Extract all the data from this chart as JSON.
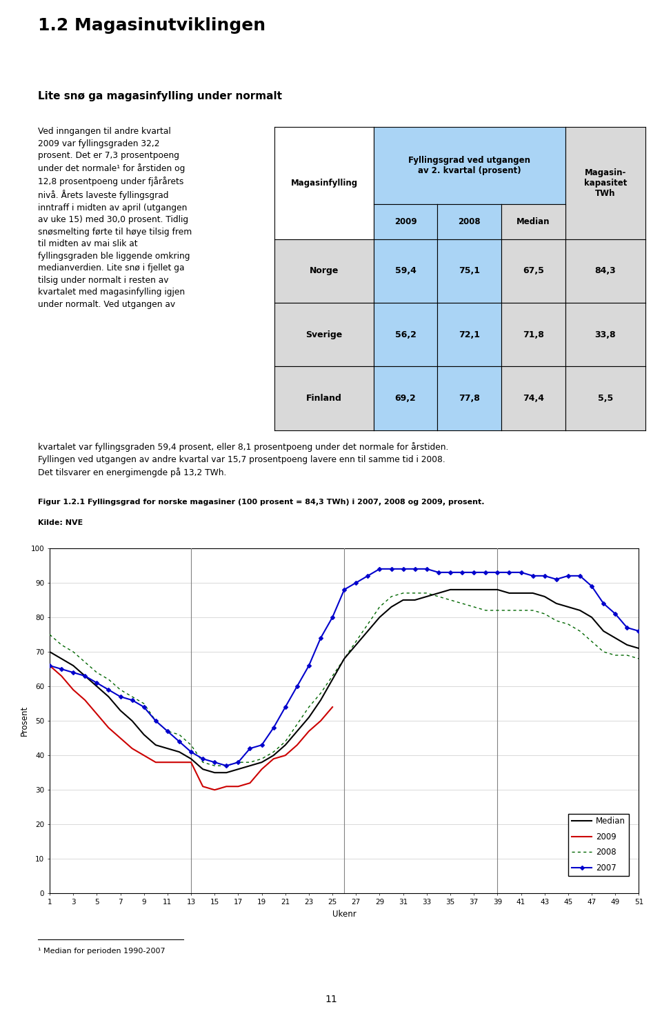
{
  "title": "1.2 Magasinutviklingen",
  "subtitle": "Lite snø ga magasinfylling under normalt",
  "body_text_left": "Ved inngangen til andre kvartal\n2009 var fyllingsgraden 32,2\nprosent. Det er 7,3 prosentpoeng\nunder det normale¹ for årstiden og\n12,8 prosentpoeng under fjårårets\nnivå. Årets laveste fyllingsgrad\ninntraff i midten av april (utgangen\nav uke 15) med 30,0 prosent. Tidlig\nsnøsmelting førte til høye tilsig frem\ntil midten av mai slik at\nfyllingsgraden ble liggende omkring\nmedianverdien. Lite snø i fjellet ga\ntilsig under normalt i resten av\nkvartalet med magasinfylling igjen\nunder normalt. Ved utgangen av",
  "body_text_cont": "kvartalet var fyllingsgraden 59,4 prosent, eller 8,1 prosentpoeng under det normale for årstiden.\nFyllingen ved utgangen av andre kvartal var 15,7 prosentpoeng lavere enn til samme tid i 2008.\nDet tilsvarer en energimengde på 13,2 TWh.",
  "table_header_col1": "Magasinfylling",
  "table_header_col2": "Fyllingsgrad ved utgangen\nav 2. kvartal (prosent)",
  "table_header_col3": "Magasin-\nkapasitet\nTWh",
  "table_subheader": [
    "2009",
    "2008",
    "Median"
  ],
  "table_rows": [
    [
      "Norge",
      "59,4",
      "75,1",
      "67,5",
      "84,3"
    ],
    [
      "Sverige",
      "56,2",
      "72,1",
      "71,8",
      "33,8"
    ],
    [
      "Finland",
      "69,2",
      "77,8",
      "74,4",
      "5,5"
    ]
  ],
  "fig_caption": "Figur 1.2.1 Fyllingsgrad for norske magasiner (100 prosent = 84,3 TWh) i 2007, 2008 og 2009, prosent.",
  "fig_source": "Kilde: NVE",
  "page_number": "11",
  "footnote": "¹ Median for perioden 1990-2007",
  "chart_xlabel": "Ukenr",
  "chart_ylabel": "Prosent",
  "chart_ylim": [
    0,
    100
  ],
  "chart_yticks": [
    0,
    10,
    20,
    30,
    40,
    50,
    60,
    70,
    80,
    90,
    100
  ],
  "chart_xticks": [
    1,
    3,
    5,
    7,
    9,
    11,
    13,
    15,
    17,
    19,
    21,
    23,
    25,
    27,
    29,
    31,
    33,
    35,
    37,
    39,
    41,
    43,
    45,
    47,
    49,
    51
  ],
  "chart_vlines": [
    13,
    26,
    39
  ],
  "median_data": [
    70,
    68,
    66,
    63,
    60,
    57,
    53,
    50,
    46,
    43,
    42,
    41,
    39,
    36,
    35,
    35,
    36,
    37,
    38,
    40,
    43,
    47,
    51,
    56,
    62,
    68,
    72,
    76,
    80,
    83,
    85,
    85,
    86,
    87,
    88,
    88,
    88,
    88,
    88,
    87,
    87,
    87,
    86,
    84,
    83,
    82,
    80,
    76,
    74,
    72,
    71
  ],
  "data_2009": [
    66,
    63,
    59,
    56,
    52,
    48,
    45,
    42,
    40,
    38,
    38,
    38,
    38,
    31,
    30,
    31,
    31,
    32,
    36,
    39,
    40,
    43,
    47,
    50,
    54,
    null,
    null,
    null,
    null,
    null,
    null,
    null,
    null,
    null,
    null,
    null,
    null,
    null,
    null,
    null,
    null,
    null,
    null,
    null,
    null,
    null,
    null,
    null,
    null,
    null,
    null
  ],
  "data_2008": [
    75,
    72,
    70,
    67,
    64,
    62,
    59,
    57,
    55,
    50,
    47,
    46,
    43,
    38,
    37,
    37,
    38,
    38,
    39,
    41,
    44,
    49,
    54,
    58,
    63,
    68,
    73,
    78,
    83,
    86,
    87,
    87,
    87,
    86,
    85,
    84,
    83,
    82,
    82,
    82,
    82,
    82,
    81,
    79,
    78,
    76,
    73,
    70,
    69,
    69,
    68
  ],
  "data_2007": [
    66,
    65,
    64,
    63,
    61,
    59,
    57,
    56,
    54,
    50,
    47,
    44,
    41,
    39,
    38,
    37,
    38,
    42,
    43,
    48,
    54,
    60,
    66,
    74,
    80,
    88,
    90,
    92,
    94,
    94,
    94,
    94,
    94,
    93,
    93,
    93,
    93,
    93,
    93,
    93,
    93,
    92,
    92,
    91,
    92,
    92,
    89,
    84,
    81,
    77,
    76
  ],
  "median_color": "#000000",
  "color_2009": "#cc0000",
  "color_2008": "#006600",
  "color_2007": "#0000cc",
  "blue_bg": "#aad4f5",
  "light_gray": "#d9d9d9",
  "white": "#ffffff"
}
